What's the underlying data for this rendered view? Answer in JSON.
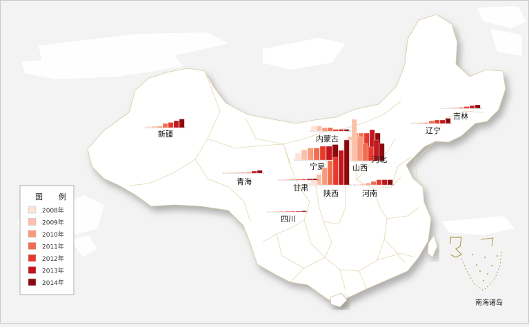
{
  "legend": {
    "title": "图　例",
    "items": [
      {
        "label": "2008年",
        "color": "#fde3da"
      },
      {
        "label": "2009年",
        "color": "#fcc0aa"
      },
      {
        "label": "2010年",
        "color": "#f99a7d"
      },
      {
        "label": "2011年",
        "color": "#f26c50"
      },
      {
        "label": "2012年",
        "color": "#e43a2b"
      },
      {
        "label": "2013年",
        "color": "#c4161c"
      },
      {
        "label": "2014年",
        "color": "#8c0a0e"
      }
    ]
  },
  "inset_label": "南海诸岛",
  "chart_data": {
    "type": "bar",
    "title": "",
    "categories": [
      "2008年",
      "2009年",
      "2010年",
      "2011年",
      "2012年",
      "2013年",
      "2014年"
    ],
    "provinces": [
      {
        "name": "新疆",
        "values": [
          0.4,
          0.4,
          0.4,
          1.2,
          1.5,
          2,
          2.5
        ]
      },
      {
        "name": "内蒙古",
        "values": [
          1.5,
          1.5,
          1.0,
          1.0,
          0.5,
          0.5,
          0.5
        ]
      },
      {
        "name": "宁夏",
        "values": [
          2,
          3,
          3.5,
          3.5,
          4,
          4,
          4.5
        ]
      },
      {
        "name": "山西",
        "values": [
          4,
          7,
          8,
          8,
          8,
          9,
          8
        ]
      },
      {
        "name": "河北",
        "values": [
          6,
          12,
          7,
          5,
          4,
          6,
          5
        ]
      },
      {
        "name": "陕西",
        "values": [
          2,
          3,
          5,
          7,
          8,
          10,
          13
        ]
      },
      {
        "name": "甘肃",
        "values": [
          0.3,
          0.3,
          0.3,
          0.3,
          0.3,
          0.4,
          0.4
        ]
      },
      {
        "name": "青海",
        "values": [
          0.2,
          0.2,
          0.2,
          0.2,
          0.2,
          0.6,
          0.8
        ]
      },
      {
        "name": "四川",
        "values": [
          0.2,
          0.2,
          0.2,
          0.2,
          0.2,
          0.2,
          0.3
        ]
      },
      {
        "name": "河南",
        "values": [
          0.3,
          0.3,
          0.5,
          1.0,
          1.5,
          1.5,
          1.5
        ]
      },
      {
        "name": "辽宁",
        "values": [
          0.3,
          0.3,
          0.3,
          0.8,
          1.0,
          1.0,
          1.5
        ]
      },
      {
        "name": "吉林",
        "values": [
          0.2,
          0.2,
          0.2,
          0.3,
          0.5,
          0.8,
          1.0
        ]
      }
    ]
  }
}
